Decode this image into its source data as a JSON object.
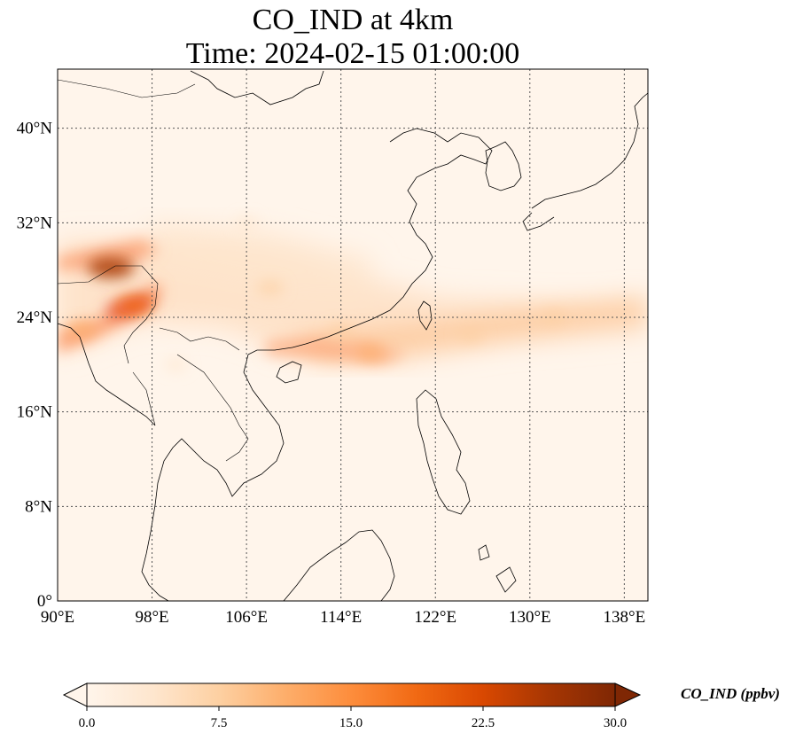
{
  "title": {
    "line1": "CO_IND at 4km",
    "line2": "Time: 2024-02-15 01:00:00"
  },
  "map": {
    "lon_range": [
      90,
      140
    ],
    "lat_range": [
      0,
      45
    ],
    "lon_ticks": [
      {
        "value": 90,
        "label": "90°E"
      },
      {
        "value": 98,
        "label": "98°E"
      },
      {
        "value": 106,
        "label": "106°E"
      },
      {
        "value": 114,
        "label": "114°E"
      },
      {
        "value": 122,
        "label": "122°E"
      },
      {
        "value": 130,
        "label": "130°E"
      },
      {
        "value": 138,
        "label": "138°E"
      }
    ],
    "lat_ticks": [
      {
        "value": 0,
        "label": "0°"
      },
      {
        "value": 8,
        "label": "8°N"
      },
      {
        "value": 16,
        "label": "16°N"
      },
      {
        "value": 24,
        "label": "24°N"
      },
      {
        "value": 32,
        "label": "32°N"
      },
      {
        "value": 40,
        "label": "40°N"
      }
    ],
    "gridlines": true
  },
  "colorbar": {
    "label": "CO_IND (ppbv)",
    "min": 0,
    "max": 30,
    "ticks": [
      "0.0",
      "7.5",
      "15.0",
      "22.5",
      "30.0"
    ],
    "colors": [
      "#fff5eb",
      "#fee6ce",
      "#fdd0a2",
      "#fdae6b",
      "#fd8d3c",
      "#f16913",
      "#d94801",
      "#a63603",
      "#7f2704"
    ],
    "extend": "both"
  },
  "chart_data": {
    "type": "heatmap",
    "variable": "CO_IND",
    "units": "ppbv",
    "plumes": [
      {
        "lon": 94.5,
        "lat": 28.2,
        "value": 27
      },
      {
        "lon": 96.5,
        "lat": 25.0,
        "value": 18
      },
      {
        "lon": 92.0,
        "lat": 23.0,
        "value": 12
      },
      {
        "lon": 108.0,
        "lat": 26.5,
        "value": 8
      },
      {
        "lon": 114.0,
        "lat": 22.8,
        "value": 9
      },
      {
        "lon": 116.5,
        "lat": 21.0,
        "value": 10
      },
      {
        "lon": 125.0,
        "lat": 22.5,
        "value": 7
      },
      {
        "lon": 132.0,
        "lat": 24.0,
        "value": 6
      },
      {
        "lon": 106.0,
        "lat": 32.0,
        "value": 3
      },
      {
        "lon": 100.0,
        "lat": 20.0,
        "value": 4
      }
    ]
  }
}
